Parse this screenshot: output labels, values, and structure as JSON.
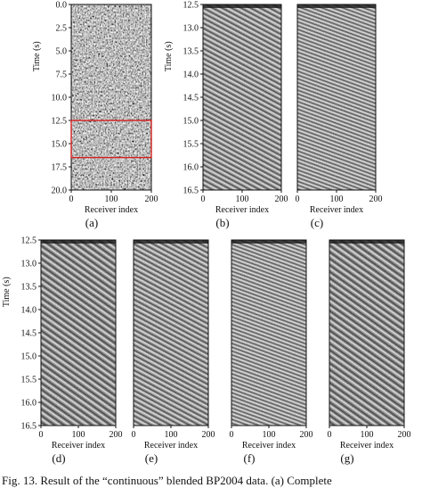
{
  "figure": {
    "xlabel": "Receiver index",
    "ylabel": "Time (s)",
    "caption": "Fig. 13.   Result of the “continuous” blended BP2004 data. (a) Complete",
    "colors": {
      "frame": "#111111",
      "highlight_box": "#d62020",
      "background": "#ffffff"
    }
  },
  "chart_data": [
    {
      "type": "heatmap",
      "label": "(a)",
      "xlabel": "Receiver index",
      "ylabel": "Time (s)",
      "xlim": [
        0,
        200
      ],
      "ylim": [
        20.0,
        0.0
      ],
      "xticks": [
        "0",
        "100",
        "200"
      ],
      "yticks": [
        "0.0",
        "2.5",
        "5.0",
        "7.5",
        "10.0",
        "12.5",
        "15.0",
        "17.5",
        "20.0"
      ],
      "highlight": {
        "x": [
          0,
          200
        ],
        "y": [
          12.5,
          16.5
        ],
        "color": "#d62020"
      }
    },
    {
      "type": "heatmap",
      "label": "(b)",
      "xlabel": "Receiver index",
      "ylabel": "Time (s)",
      "xlim": [
        0,
        200
      ],
      "ylim": [
        16.5,
        12.5
      ],
      "xticks": [
        "0",
        "100",
        "200"
      ],
      "yticks": [
        "12.5",
        "13.0",
        "13.5",
        "14.0",
        "14.5",
        "15.0",
        "15.5",
        "16.0",
        "16.5"
      ]
    },
    {
      "type": "heatmap",
      "label": "(c)",
      "xlabel": "Receiver index",
      "xlim": [
        0,
        200
      ],
      "ylim": [
        16.5,
        12.5
      ],
      "xticks": [
        "0",
        "100",
        "200"
      ]
    },
    {
      "type": "heatmap",
      "label": "(d)",
      "xlabel": "Receiver index",
      "ylabel": "Time (s)",
      "xlim": [
        0,
        200
      ],
      "ylim": [
        16.5,
        12.5
      ],
      "xticks": [
        "0",
        "100",
        "200"
      ],
      "yticks": [
        "12.5",
        "13.0",
        "13.5",
        "14.0",
        "14.5",
        "15.0",
        "15.5",
        "16.0",
        "16.5"
      ]
    },
    {
      "type": "heatmap",
      "label": "(e)",
      "xlabel": "Receiver index",
      "xlim": [
        0,
        200
      ],
      "ylim": [
        16.5,
        12.5
      ],
      "xticks": [
        "0",
        "100",
        "200"
      ]
    },
    {
      "type": "heatmap",
      "label": "(f)",
      "xlabel": "Receiver index",
      "xlim": [
        0,
        200
      ],
      "ylim": [
        16.5,
        12.5
      ],
      "xticks": [
        "0",
        "100",
        "200"
      ]
    },
    {
      "type": "heatmap",
      "label": "(g)",
      "xlabel": "Receiver index",
      "xlim": [
        0,
        200
      ],
      "ylim": [
        16.5,
        12.5
      ],
      "xticks": [
        "0",
        "100",
        "200"
      ]
    }
  ]
}
